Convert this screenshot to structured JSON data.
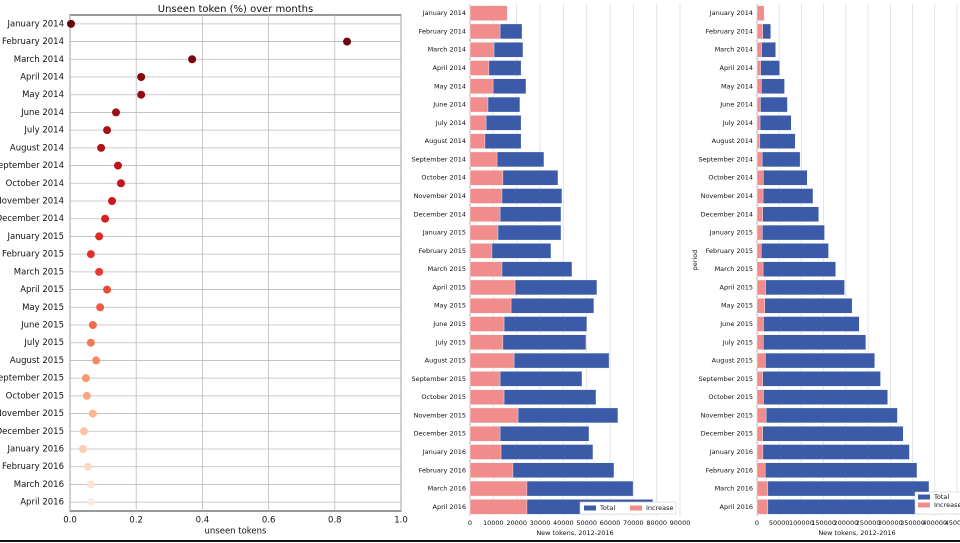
{
  "chart_data": [
    {
      "type": "dot",
      "title": "Unseen token (%) over months",
      "xlabel": "unseen tokens",
      "categories": [
        "January 2014",
        "February 2014",
        "March 2014",
        "April 2014",
        "May 2014",
        "June 2014",
        "July 2014",
        "August 2014",
        "September 2014",
        "October 2014",
        "November 2014",
        "December 2014",
        "January 2015",
        "February 2015",
        "March 2015",
        "April 2015",
        "May 2015",
        "June 2015",
        "July 2015",
        "August 2015",
        "September 2015",
        "October 2015",
        "November 2015",
        "December 2015",
        "January 2016",
        "February 2016",
        "March 2016",
        "April 2016"
      ],
      "values": [
        0.003,
        0.837,
        0.369,
        0.215,
        0.215,
        0.139,
        0.112,
        0.094,
        0.145,
        0.154,
        0.127,
        0.106,
        0.088,
        0.063,
        0.088,
        0.112,
        0.091,
        0.069,
        0.063,
        0.079,
        0.048,
        0.051,
        0.069,
        0.042,
        0.039,
        0.054,
        0.063,
        0.063
      ],
      "colors": [
        "#67000d",
        "#6f020e",
        "#7a0510",
        "#860811",
        "#920a13",
        "#9e0d14",
        "#a91016",
        "#b11218",
        "#bc141a",
        "#c4161c",
        "#cb181d",
        "#d42020",
        "#dc2a25",
        "#e32f27",
        "#e83a2e",
        "#ec4a38",
        "#ef5a42",
        "#f26a4b",
        "#f47a56",
        "#f6895f",
        "#f8996d",
        "#fba87d",
        "#fcb58f",
        "#fcc2a2",
        "#fdceb4",
        "#fdd9c6",
        "#fee2d4",
        "#fee9df"
      ],
      "xlim": [
        0,
        1
      ],
      "xticks": [
        {
          "value": 0,
          "label": "0.0"
        },
        0.2,
        0.4,
        0.6,
        0.8,
        {
          "value": 1,
          "label": "1.0"
        }
      ],
      "grid": true
    },
    {
      "type": "barh",
      "xlabel": "New tokens, 2012-2016",
      "categories": [
        "January 2014",
        "February 2014",
        "March 2014",
        "April 2014",
        "May 2014",
        "June 2014",
        "July 2014",
        "August 2014",
        "September 2014",
        "October 2014",
        "November 2014",
        "December 2014",
        "January 2015",
        "February 2015",
        "March 2015",
        "April 2015",
        "May 2015",
        "June 2015",
        "July 2015",
        "August 2015",
        "September 2015",
        "October 2015",
        "November 2015",
        "December 2015",
        "January 2016",
        "February 2016",
        "March 2016",
        "April 2016"
      ],
      "series": [
        {
          "name": "Total",
          "color": "#3b5ba9",
          "values": [
            16000,
            22300,
            22700,
            21900,
            24000,
            21400,
            21900,
            21900,
            31700,
            37700,
            39400,
            39000,
            39000,
            34700,
            43700,
            54400,
            53100,
            50100,
            49700,
            59600,
            48000,
            54000,
            63400,
            51000,
            52700,
            61700,
            69900,
            78400
          ]
        },
        {
          "name": "Increase",
          "color": "#f08c8c",
          "values": [
            16000,
            12900,
            10300,
            8100,
            9900,
            7700,
            6900,
            6400,
            11600,
            14100,
            13700,
            12900,
            12000,
            9400,
            13700,
            19300,
            17600,
            14600,
            14100,
            18900,
            12900,
            14600,
            20600,
            12900,
            13300,
            18400,
            24400,
            24400
          ]
        }
      ],
      "xlim": [
        0,
        90000
      ],
      "xticks": [
        0,
        10000,
        20000,
        30000,
        40000,
        50000,
        60000,
        70000,
        80000,
        90000
      ],
      "grid": true,
      "legend": "lower right"
    },
    {
      "type": "barh",
      "xlabel": "New tokens, 2012-2016",
      "ylabel": "period",
      "categories": [
        "January 2014",
        "February 2014",
        "March 2014",
        "April 2014",
        "May 2014",
        "June 2014",
        "July 2014",
        "August 2014",
        "September 2014",
        "October 2014",
        "November 2014",
        "December 2014",
        "January 2015",
        "February 2015",
        "March 2015",
        "April 2015",
        "May 2015",
        "June 2015",
        "July 2015",
        "August 2015",
        "September 2015",
        "October 2015",
        "November 2015",
        "December 2015",
        "January 2016",
        "February 2016",
        "March 2016",
        "April 2016"
      ],
      "series": [
        {
          "name": "Total",
          "color": "#3b5ba9",
          "values": [
            16000,
            31000,
            42000,
            51000,
            62000,
            68500,
            77000,
            86000,
            97000,
            113000,
            126000,
            139000,
            152000,
            161000,
            177000,
            197000,
            214000,
            230000,
            245000,
            265000,
            278000,
            294000,
            316000,
            329000,
            343000,
            360000,
            387000,
            413000
          ]
        },
        {
          "name": "Increase",
          "color": "#f08c8c",
          "values": [
            16000,
            12900,
            10300,
            8100,
            9900,
            7700,
            6900,
            6400,
            11600,
            14100,
            13700,
            12900,
            12000,
            9400,
            13700,
            19300,
            17600,
            14600,
            14100,
            18900,
            12900,
            14600,
            20600,
            12900,
            13300,
            18400,
            24400,
            24400
          ]
        }
      ],
      "xlim": [
        0,
        450000
      ],
      "xticks": [
        0,
        50000,
        100000,
        150000,
        200000,
        250000,
        300000,
        350000,
        400000,
        450000
      ],
      "grid": true,
      "legend": "lower right"
    }
  ]
}
